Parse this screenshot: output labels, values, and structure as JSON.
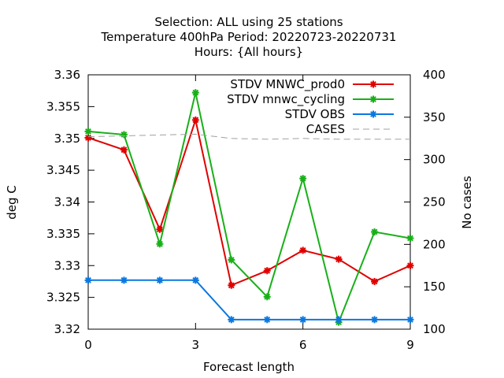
{
  "chart_data": {
    "type": "line",
    "title_lines": [
      "Selection: ALL using    25 stations",
      "Temperature 400hPa   Period: 20220723-20220731",
      "Hours: {All hours}"
    ],
    "xlabel": "Forecast length",
    "ylabel": "deg C",
    "y2label": "No cases",
    "xlim": [
      0,
      9
    ],
    "ylim": [
      3.32,
      3.36
    ],
    "y2lim": [
      100,
      400
    ],
    "x_ticks": [
      "0",
      "3",
      "6",
      "9"
    ],
    "y_ticks": [
      "3.32",
      "3.325",
      "3.33",
      "3.335",
      "3.34",
      "3.345",
      "3.35",
      "3.355",
      "3.36"
    ],
    "y2_ticks": [
      "100",
      "150",
      "200",
      "250",
      "300",
      "350",
      "400"
    ],
    "legend_position": "top-right",
    "x": [
      0,
      1,
      2,
      3,
      4,
      5,
      6,
      7,
      8,
      9
    ],
    "series": [
      {
        "name": "STDV MNWC_prod0",
        "color": "#e00000",
        "axis": "y",
        "values": [
          3.3501,
          3.3482,
          3.3357,
          3.3529,
          3.3269,
          3.3292,
          3.3324,
          3.331,
          3.3275,
          3.33
        ]
      },
      {
        "name": "STDV mnwc_cycling",
        "color": "#18b018",
        "axis": "y",
        "values": [
          3.3511,
          3.3506,
          3.3334,
          3.3572,
          3.3309,
          3.3251,
          3.3437,
          3.3211,
          3.3353,
          3.3343
        ]
      },
      {
        "name": "STDV OBS",
        "color": "#0a78e0",
        "axis": "y",
        "values": [
          3.3277,
          3.3277,
          3.3277,
          3.3277,
          3.3215,
          3.3215,
          3.3215,
          3.3215,
          3.3215,
          3.3215
        ]
      },
      {
        "name": "CASES",
        "color": "#a0a0a0",
        "axis": "y2",
        "dashed": true,
        "values": [
          327,
          328,
          329,
          330,
          325,
          324,
          325,
          324,
          324,
          324
        ]
      }
    ]
  }
}
